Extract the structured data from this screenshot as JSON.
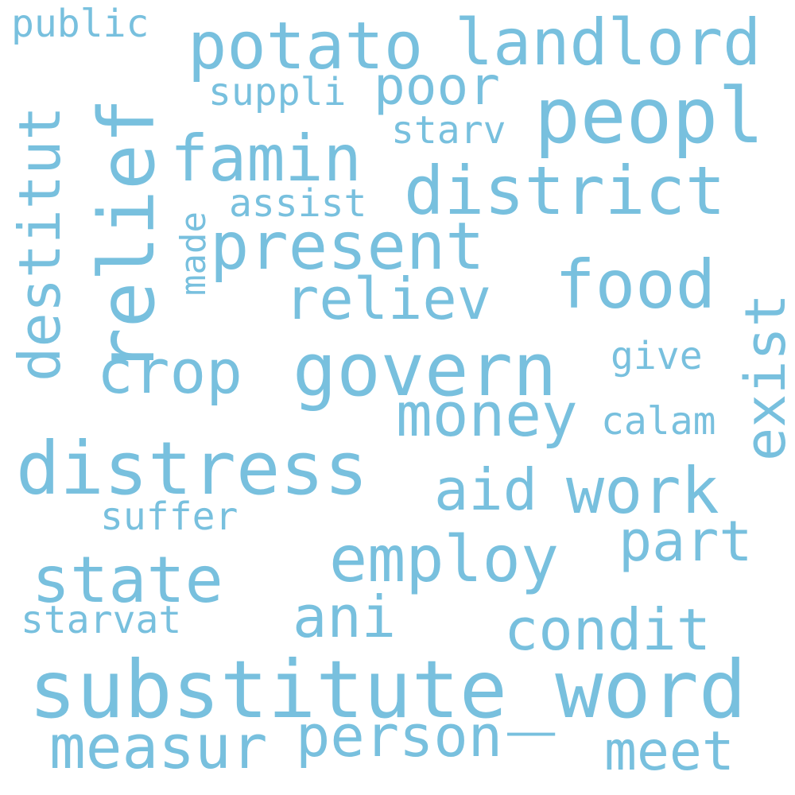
{
  "colors": {
    "background": "#ffffff",
    "word": "#78c0de"
  },
  "words": {
    "public": "public",
    "potato": "potato",
    "landlord": "landlord",
    "suppli": "suppli",
    "poor": "poor",
    "peopl": "peopl",
    "starv": "starv",
    "famin": "famin",
    "district": "district",
    "assist": "assist",
    "made": "made",
    "present": "present",
    "destitut": "destitut",
    "relief": "relief",
    "reliev": "reliev",
    "food": "food",
    "exist": "exist",
    "crop": "crop",
    "govern": "govern",
    "give": "give",
    "money": "money",
    "calam": "calam",
    "distress": "distress",
    "aid": "aid",
    "work": "work",
    "suffer": "suffer",
    "part": "part",
    "employ": "employ",
    "state": "state",
    "ani": "ani",
    "starvat": "starvat",
    "condit": "condit",
    "substitute_word": "substitute_word",
    "measur": "measur",
    "person": "person",
    "meet": "meet"
  }
}
